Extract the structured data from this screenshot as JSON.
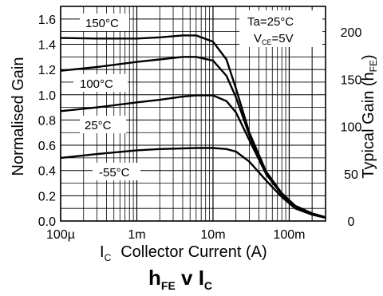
{
  "chart_data": {
    "type": "line",
    "x_scale": "log",
    "x_range": [
      0.0001,
      0.3
    ],
    "y_left_label": "Normalised Gain",
    "y_left_range": [
      0,
      1.7
    ],
    "y_left_ticks": [
      "0.0",
      "0.2",
      "0.4",
      "0.6",
      "0.8",
      "1.0",
      "1.2",
      "1.4",
      "1.6"
    ],
    "y_right_label_prefix": "Typical Gain (h",
    "y_right_label_sub": "FE",
    "y_right_label_suffix": ")",
    "y_right_ticks": [
      "0",
      "50",
      "100",
      "150",
      "200"
    ],
    "x_ticks": [
      "100µ",
      "1m",
      "10m",
      "100m"
    ],
    "x_label_symbol": "I",
    "x_label_sub": "C",
    "x_label_text": "Collector Current (A)",
    "title_h": "h",
    "title_h_sub": "FE",
    "title_mid": " v I",
    "title_i_sub": "C",
    "conditions": {
      "ta": "Ta=25°C",
      "vce_prefix": "V",
      "vce_sub": "CE",
      "vce_suffix": "=5V"
    },
    "grid": true,
    "series": [
      {
        "name": "150°C",
        "x": [
          0.0001,
          0.0003,
          0.001,
          0.002,
          0.004,
          0.006,
          0.01,
          0.015,
          0.02,
          0.03,
          0.05,
          0.08,
          0.12,
          0.2,
          0.3
        ],
        "y": [
          1.45,
          1.445,
          1.445,
          1.455,
          1.47,
          1.47,
          1.42,
          1.28,
          1.05,
          0.7,
          0.39,
          0.22,
          0.12,
          0.06,
          0.03
        ]
      },
      {
        "name": "",
        "x": [
          0.0001,
          0.0003,
          0.001,
          0.002,
          0.004,
          0.006,
          0.01,
          0.015,
          0.02,
          0.03,
          0.05,
          0.08,
          0.12,
          0.2,
          0.3
        ],
        "y": [
          1.19,
          1.22,
          1.26,
          1.28,
          1.3,
          1.3,
          1.27,
          1.15,
          0.98,
          0.68,
          0.38,
          0.22,
          0.12,
          0.06,
          0.03
        ]
      },
      {
        "name": "100°C",
        "x": [
          0.0001,
          0.0003,
          0.001,
          0.002,
          0.004,
          0.006,
          0.01,
          0.015,
          0.02,
          0.03,
          0.05,
          0.08,
          0.12,
          0.2,
          0.3
        ],
        "y": [
          0.87,
          0.9,
          0.94,
          0.96,
          0.985,
          0.995,
          0.995,
          0.95,
          0.86,
          0.64,
          0.37,
          0.21,
          0.11,
          0.055,
          0.03
        ]
      },
      {
        "name": "25°C",
        "x": [
          0.0001,
          0.0003,
          0.001,
          0.002,
          0.004,
          0.006,
          0.01,
          0.015,
          0.02,
          0.03,
          0.05,
          0.08,
          0.12,
          0.2,
          0.3
        ],
        "y": [
          0.5,
          0.53,
          0.56,
          0.57,
          0.575,
          0.578,
          0.578,
          0.57,
          0.55,
          0.47,
          0.32,
          0.19,
          0.1,
          0.05,
          0.025
        ]
      }
    ],
    "extra_labels": [
      "-55°C"
    ]
  }
}
